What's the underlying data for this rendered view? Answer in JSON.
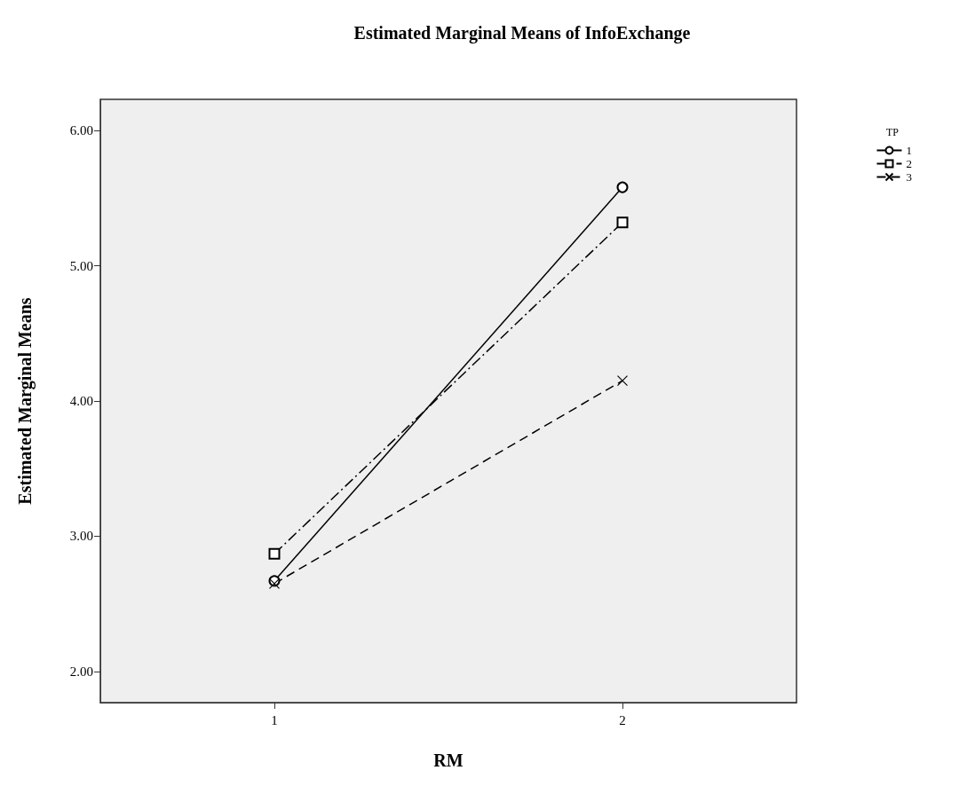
{
  "chart_data": {
    "type": "line",
    "title": "Estimated Marginal Means of InfoExchange",
    "xlabel": "RM",
    "ylabel": "Estimated Marginal Means",
    "legend_title": "TP",
    "categories": [
      "1",
      "2"
    ],
    "series": [
      {
        "name": "1",
        "color": "#000000",
        "values": [
          2.67,
          5.58
        ],
        "marker": "circle",
        "line_style": "solid"
      },
      {
        "name": "2",
        "color": "#000000",
        "values": [
          2.87,
          5.32
        ],
        "marker": "square",
        "line_style": "dashdot"
      },
      {
        "name": "3",
        "color": "#000000",
        "values": [
          2.65,
          4.15
        ],
        "marker": "cross",
        "line_style": "dashed"
      }
    ],
    "ylim": [
      1.77,
      6.23
    ],
    "yticks": [
      {
        "value": 2,
        "label": "2.00"
      },
      {
        "value": 3,
        "label": "3.00"
      },
      {
        "value": 4,
        "label": "4.00"
      },
      {
        "value": 5,
        "label": "5.00"
      },
      {
        "value": 6,
        "label": "6.00"
      }
    ],
    "grid": false,
    "legend": "top right"
  }
}
